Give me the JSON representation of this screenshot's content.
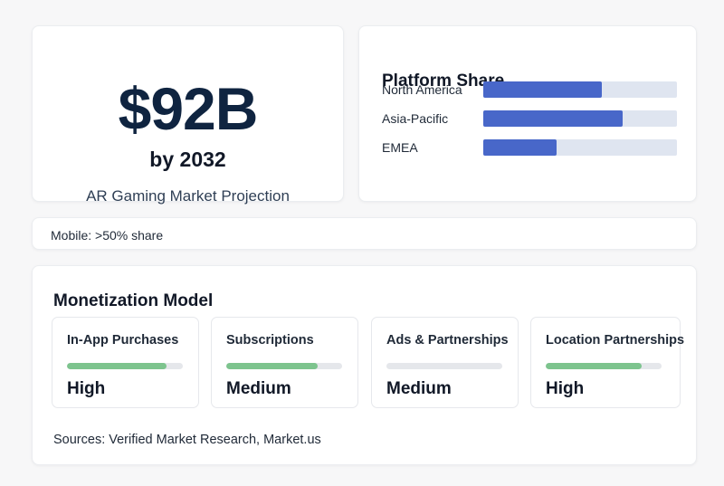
{
  "hero": {
    "amount": "$92B",
    "by_year": "by 2032",
    "caption": "AR Gaming Market Projection"
  },
  "platform": {
    "title": "Platform Share",
    "rows": [
      {
        "label": "North America",
        "share": 0.61
      },
      {
        "label": "Asia-Pacific",
        "share": 0.72
      },
      {
        "label": "EMEA",
        "share": 0.38
      }
    ]
  },
  "mobile": {
    "text": "Mobile: >50% share"
  },
  "monetization": {
    "title": "Monetization Model",
    "items": [
      {
        "name": "In-App Purchases",
        "level": "High",
        "fill": 0.86
      },
      {
        "name": "Subscriptions",
        "level": "Medium",
        "fill": 0.79
      },
      {
        "name": "Ads & Partnerships",
        "level": "Medium",
        "fill": 0.0
      },
      {
        "name": "Location Partnerships",
        "level": "High",
        "fill": 0.83
      }
    ],
    "sources": "Sources: Verified Market Research, Market.us"
  },
  "colors": {
    "bar_blue": "#4867c9",
    "bar_track": "#dfe5f0",
    "level_green": "#7dc48e",
    "hero_text": "#0f2440"
  }
}
